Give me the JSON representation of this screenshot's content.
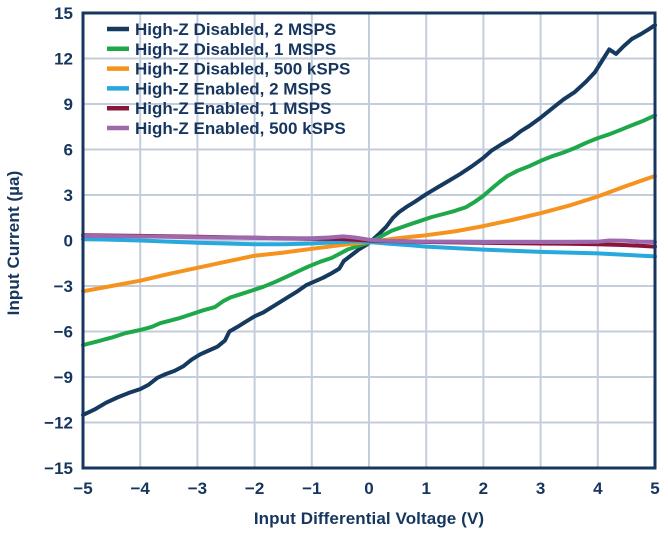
{
  "chart_data": {
    "type": "line",
    "title": "",
    "xlabel": "Input Differential Voltage (V)",
    "ylabel": "Input Current (µa)",
    "xlim": [
      -5,
      5
    ],
    "ylim": [
      -15,
      15
    ],
    "xticks": [
      -5,
      -4,
      -3,
      -2,
      -1,
      0,
      1,
      2,
      3,
      4,
      5
    ],
    "yticks": [
      -15,
      -12,
      -9,
      -6,
      -3,
      0,
      3,
      6,
      9,
      12,
      15
    ],
    "grid": true,
    "legend_position": "top-left",
    "series": [
      {
        "name": "High-Z Disabled, 2 MSPS",
        "color": "#16395F",
        "x": [
          -5,
          -4.8,
          -4.6,
          -4.4,
          -4.2,
          -4,
          -3.85,
          -3.7,
          -3.55,
          -3.4,
          -3.25,
          -3.1,
          -2.95,
          -2.8,
          -2.65,
          -2.52,
          -2.44,
          -2.3,
          -2.15,
          -2,
          -1.85,
          -1.7,
          -1.55,
          -1.4,
          -1.25,
          -1.1,
          -0.95,
          -0.8,
          -0.65,
          -0.52,
          -0.44,
          -0.3,
          -0.18,
          -0.05,
          0.05,
          0.18,
          0.3,
          0.42,
          0.52,
          0.65,
          0.8,
          1,
          1.2,
          1.4,
          1.6,
          1.8,
          2,
          2.15,
          2.3,
          2.5,
          2.65,
          2.8,
          3,
          3.2,
          3.4,
          3.6,
          3.8,
          3.95,
          4.1,
          4.2,
          4.32,
          4.45,
          4.6,
          4.75,
          4.88,
          5
        ],
        "y": [
          -11.5,
          -11.15,
          -10.7,
          -10.35,
          -10.05,
          -9.8,
          -9.5,
          -9.05,
          -8.8,
          -8.6,
          -8.3,
          -7.85,
          -7.5,
          -7.25,
          -7,
          -6.6,
          -6,
          -5.7,
          -5.35,
          -5,
          -4.75,
          -4.4,
          -4.05,
          -3.7,
          -3.35,
          -2.95,
          -2.7,
          -2.45,
          -2.15,
          -1.85,
          -1.35,
          -0.95,
          -0.6,
          -0.3,
          0,
          0.45,
          0.9,
          1.5,
          1.85,
          2.2,
          2.55,
          3.05,
          3.5,
          3.95,
          4.4,
          4.9,
          5.45,
          5.95,
          6.3,
          6.75,
          7.2,
          7.55,
          8.1,
          8.7,
          9.3,
          9.8,
          10.5,
          11.1,
          12,
          12.6,
          12.3,
          12.8,
          13.3,
          13.6,
          13.9,
          14.2
        ]
      },
      {
        "name": "High-Z Disabled, 1 MSPS",
        "color": "#1FA84A",
        "x": [
          -5,
          -4.75,
          -4.5,
          -4.25,
          -4,
          -3.8,
          -3.65,
          -3.5,
          -3.3,
          -3.1,
          -2.9,
          -2.7,
          -2.55,
          -2.42,
          -2.25,
          -2.05,
          -1.85,
          -1.65,
          -1.45,
          -1.25,
          -1.05,
          -0.85,
          -0.65,
          -0.5,
          -0.38,
          -0.22,
          -0.1,
          0,
          0.12,
          0.25,
          0.4,
          0.55,
          0.7,
          0.9,
          1.1,
          1.3,
          1.5,
          1.7,
          1.85,
          2,
          2.12,
          2.28,
          2.42,
          2.6,
          2.8,
          3,
          3.2,
          3.4,
          3.6,
          3.8,
          4,
          4.2,
          4.4,
          4.6,
          4.8,
          5
        ],
        "y": [
          -6.9,
          -6.65,
          -6.4,
          -6.1,
          -5.9,
          -5.7,
          -5.45,
          -5.3,
          -5.1,
          -4.85,
          -4.6,
          -4.4,
          -4,
          -3.75,
          -3.55,
          -3.3,
          -3.05,
          -2.75,
          -2.4,
          -2.05,
          -1.7,
          -1.4,
          -1.15,
          -0.85,
          -0.6,
          -0.4,
          -0.25,
          -0.15,
          0.1,
          0.35,
          0.65,
          0.85,
          1.05,
          1.3,
          1.55,
          1.75,
          1.95,
          2.2,
          2.55,
          2.95,
          3.35,
          3.85,
          4.25,
          4.6,
          4.9,
          5.25,
          5.55,
          5.8,
          6.1,
          6.45,
          6.75,
          7,
          7.3,
          7.6,
          7.9,
          8.25
        ]
      },
      {
        "name": "High-Z Disabled, 500 kSPS",
        "color": "#F6921E",
        "x": [
          -5,
          -4.5,
          -4,
          -3.5,
          -3,
          -2.5,
          -2,
          -1.5,
          -1,
          -0.5,
          0,
          0.5,
          1,
          1.5,
          2,
          2.5,
          3,
          3.5,
          4,
          4.5,
          5
        ],
        "y": [
          -3.35,
          -3,
          -2.65,
          -2.2,
          -1.8,
          -1.4,
          -1,
          -0.8,
          -0.55,
          -0.3,
          -0.1,
          0.15,
          0.35,
          0.6,
          0.95,
          1.35,
          1.8,
          2.3,
          2.9,
          3.6,
          4.25
        ]
      },
      {
        "name": "High-Z Enabled, 2 MSPS",
        "color": "#28A9DE",
        "x": [
          -5,
          -4,
          -3,
          -2.5,
          -2,
          -1.5,
          -1,
          -0.5,
          -0.2,
          0,
          0.3,
          0.7,
          1,
          1.5,
          2,
          2.5,
          3,
          3.5,
          4,
          4.5,
          5
        ],
        "y": [
          0.1,
          0,
          -0.15,
          -0.2,
          -0.25,
          -0.25,
          -0.2,
          -0.1,
          -0.05,
          -0.1,
          -0.2,
          -0.3,
          -0.4,
          -0.5,
          -0.6,
          -0.68,
          -0.75,
          -0.8,
          -0.85,
          -0.95,
          -1.05
        ]
      },
      {
        "name": "High-Z Enabled, 1 MSPS",
        "color": "#8A1538",
        "x": [
          -5,
          -4,
          -3,
          -2,
          -1,
          -0.5,
          0,
          0.5,
          1,
          2,
          3,
          3.5,
          4,
          4.5,
          5
        ],
        "y": [
          0.35,
          0.3,
          0.25,
          0.18,
          0.12,
          0.1,
          0,
          -0.05,
          -0.1,
          -0.15,
          -0.2,
          -0.22,
          -0.25,
          -0.3,
          -0.4
        ]
      },
      {
        "name": "High-Z Enabled, 500 kSPS",
        "color": "#9D68AE",
        "x": [
          -5,
          -4,
          -3,
          -2,
          -1.5,
          -1,
          -0.7,
          -0.45,
          -0.25,
          0,
          0.3,
          0.7,
          1,
          1.5,
          2,
          2.5,
          3,
          3.5,
          4,
          4.2,
          4.5,
          4.75,
          5
        ],
        "y": [
          0.3,
          0.27,
          0.22,
          0.18,
          0.15,
          0.15,
          0.2,
          0.27,
          0.2,
          0.05,
          -0.02,
          -0.05,
          -0.07,
          -0.08,
          -0.1,
          -0.1,
          -0.1,
          -0.1,
          -0.08,
          0,
          -0.02,
          -0.08,
          -0.1
        ]
      }
    ]
  },
  "styles": {
    "background": "#FFFFFF",
    "axis_color": "#16365F",
    "grid_color": "#C3CDDB",
    "text_color": "#16365F"
  }
}
